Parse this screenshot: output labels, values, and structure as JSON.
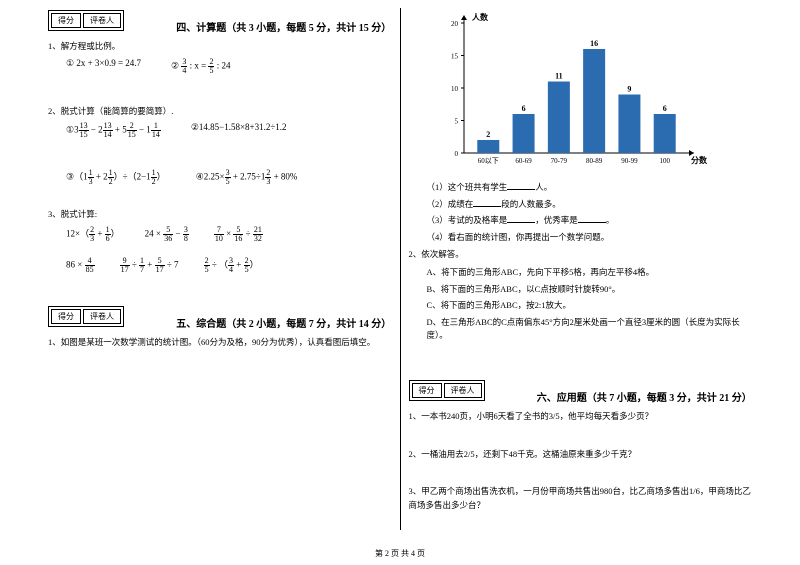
{
  "scorebox": {
    "col1": "得分",
    "col2": "评卷人"
  },
  "sec4": {
    "title": "四、计算题（共 3 小题，每题 5 分，共计 15 分）",
    "q1": "1、解方程或比例。",
    "q1a": "① 2x + 3×0.9 = 24.7",
    "q1b_pre": "② ",
    "q1b_mid": " : x = ",
    "q1b_post": " : 24",
    "q2": "2、脱式计算（能简算的要简算）.",
    "q2a_pre": "①3",
    "q2a_mid1": " − 2",
    "q2a_mid2": " + 5",
    "q2a_mid3": " − 1",
    "q2b": "②14.85−1.58×8+31.2÷1.2",
    "q2c_pre": "③（1",
    "q2c_mid": " + 2",
    "q2c_mid2": "）÷（2−1",
    "q2d_pre": "④2.25×",
    "q2d_mid": " + 2.75÷1",
    "q2d_post": " + 80%",
    "q3": "3、脱式计算:",
    "r1a_pre": "12×（",
    "r1a_mid": " + ",
    "r1b_pre": "24 × ",
    "r1b_mid": " − ",
    "r1c_mid": " × ",
    "r1c_mid2": " ÷ ",
    "r2a_pre": "86 × ",
    "r2b_mid1": " ÷ ",
    "r2b_mid2": " + ",
    "r2b_post": " ÷ 7",
    "r2c_mid": " ÷ （",
    "r2c_mid2": " + "
  },
  "sec5": {
    "title": "五、综合题（共 2 小题，每题 7 分，共计 14 分）",
    "q1": "1、如图是某班一次数学测试的统计图。（60分为及格，90分为优秀），认真看图后填空。"
  },
  "chart": {
    "ylabel": "人数",
    "xlabel": "分数",
    "ymax": 20,
    "ytick_step": 5,
    "categories": [
      "60以下",
      "60-69",
      "70-79",
      "80-89",
      "90-99",
      "100"
    ],
    "values": [
      2,
      6,
      11,
      16,
      9,
      6
    ],
    "bar_color": "#2b6cb0",
    "axis_color": "#000000",
    "label_fontsize": 7,
    "value_fontsize": 8
  },
  "right": {
    "l1": "（1）这个班共有学生",
    "l1b": "人。",
    "l2": "（2）成绩在",
    "l2b": "段的人数最多。",
    "l3": "（3）考试的及格率是",
    "l3b": "，优秀率是",
    "l3c": "。",
    "l4": "（4）看右面的统计图，你再提出一个数学问题。",
    "q2": "2、依次解答。",
    "qa": "A、将下面的三角形ABC，先向下平移5格，再向左平移4格。",
    "qb": "B、将下面的三角形ABC，以C点按顺时针旋转90°。",
    "qc": "C、将下面的三角形ABC，按2:1放大。",
    "qd": "D、在三角形ABC的C点南偏东45°方向2厘米处画一个直径3厘米的圆（长度为实际长度）。"
  },
  "sec6": {
    "title": "六、应用题（共 7 小题，每题 3 分，共计 21 分）",
    "q1": "1、一本书240页，小明6天看了全书的3/5，他平均每天看多少页？",
    "q2": "2、一桶油用去2/5，还剩下48千克。这桶油原来重多少千克？",
    "q3": "3、甲乙两个商场出售洗衣机，一月份甲商场共售出980台，比乙商场多售出1/6，甲商场比乙商场多售出多少台？"
  },
  "footer": "第 2 页 共 4 页",
  "fracs": {
    "f3_4": {
      "n": "3",
      "d": "4"
    },
    "f2_5": {
      "n": "2",
      "d": "5"
    },
    "f13_15": {
      "n": "13",
      "d": "15"
    },
    "f13_14": {
      "n": "13",
      "d": "14"
    },
    "f2_15": {
      "n": "2",
      "d": "15"
    },
    "f1_14": {
      "n": "1",
      "d": "14"
    },
    "f1_3": {
      "n": "1",
      "d": "3"
    },
    "f1_2": {
      "n": "1",
      "d": "2"
    },
    "f3_5": {
      "n": "3",
      "d": "5"
    },
    "f2_3": {
      "n": "2",
      "d": "3"
    },
    "f1_6": {
      "n": "1",
      "d": "6"
    },
    "f5_36": {
      "n": "5",
      "d": "36"
    },
    "f3_8": {
      "n": "3",
      "d": "8"
    },
    "f7_10": {
      "n": "7",
      "d": "10"
    },
    "f5_16": {
      "n": "5",
      "d": "16"
    },
    "f21_32": {
      "n": "21",
      "d": "32"
    },
    "f4_85": {
      "n": "4",
      "d": "85"
    },
    "f9_17": {
      "n": "9",
      "d": "17"
    },
    "f1_7": {
      "n": "1",
      "d": "7"
    },
    "f5_17": {
      "n": "5",
      "d": "17"
    },
    "f3_4b": {
      "n": "3",
      "d": "4"
    }
  }
}
